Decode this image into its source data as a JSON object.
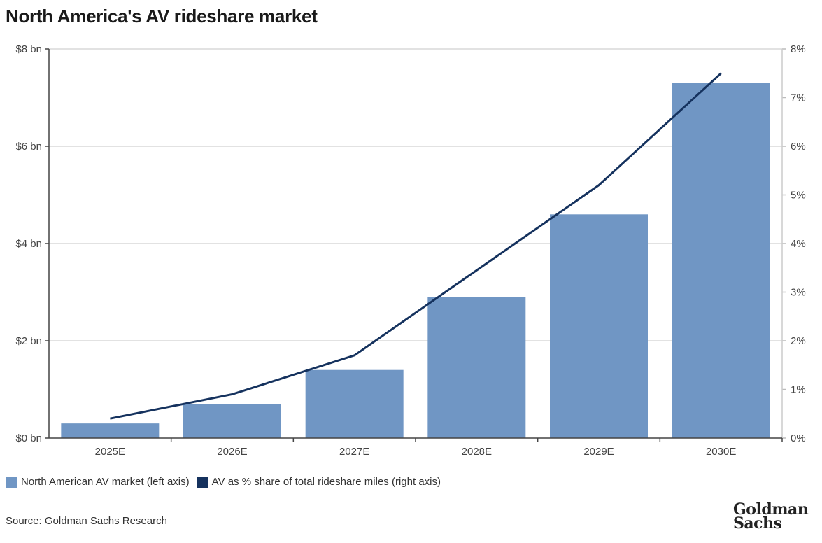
{
  "chart_data": {
    "type": "bar",
    "title": "North America's AV rideshare market",
    "categories": [
      "2025E",
      "2026E",
      "2027E",
      "2028E",
      "2029E",
      "2030E"
    ],
    "series": [
      {
        "name": "North American AV market (left axis)",
        "type": "bar",
        "axis": "left",
        "unit": "$ bn",
        "values": [
          0.3,
          0.7,
          1.4,
          2.9,
          4.6,
          7.3
        ],
        "color": "#7096c4"
      },
      {
        "name": "AV as % share of total rideshare miles (right axis)",
        "type": "line",
        "axis": "right",
        "unit": "%",
        "values": [
          0.4,
          0.9,
          1.7,
          3.45,
          5.2,
          7.5
        ],
        "color": "#15325e"
      }
    ],
    "left_axis": {
      "ylim": [
        0,
        8
      ],
      "ticks": [
        0,
        2,
        4,
        6,
        8
      ],
      "tick_labels": [
        "$0 bn",
        "$2 bn",
        "$4 bn",
        "$6 bn",
        "$8 bn"
      ]
    },
    "right_axis": {
      "ylim": [
        0,
        8
      ],
      "ticks": [
        0,
        1,
        2,
        3,
        4,
        5,
        6,
        7,
        8
      ],
      "tick_labels": [
        "0%",
        "1%",
        "2%",
        "3%",
        "4%",
        "5%",
        "6%",
        "7%",
        "8%"
      ]
    },
    "grid": true,
    "legend_position": "bottom-left"
  },
  "source": "Source: Goldman Sachs Research",
  "logo": [
    "Goldman",
    "Sachs"
  ]
}
